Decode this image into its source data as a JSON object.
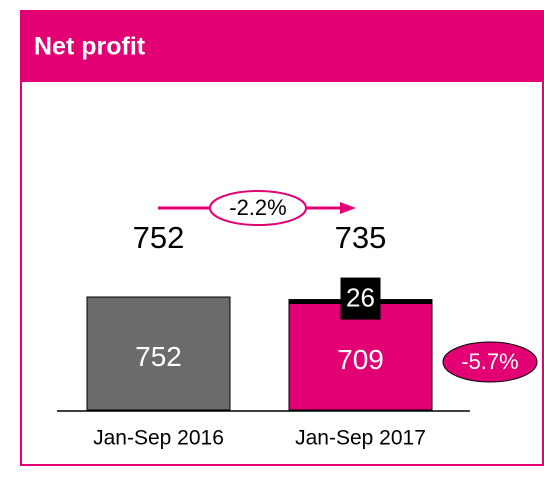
{
  "chart_data": {
    "type": "bar",
    "stacked": true,
    "title": "Net profit",
    "categories": [
      "Jan-Sep 2016",
      "Jan-Sep 2017"
    ],
    "series": [
      {
        "colors": [
          "#6b6b6b",
          "#e20074"
        ],
        "values": [
          752,
          709
        ]
      },
      {
        "color": "#000000",
        "values": [
          null,
          26
        ]
      }
    ],
    "totals": [
      752,
      735
    ],
    "annotations": [
      "-2.2%",
      "-5.7%"
    ]
  }
}
